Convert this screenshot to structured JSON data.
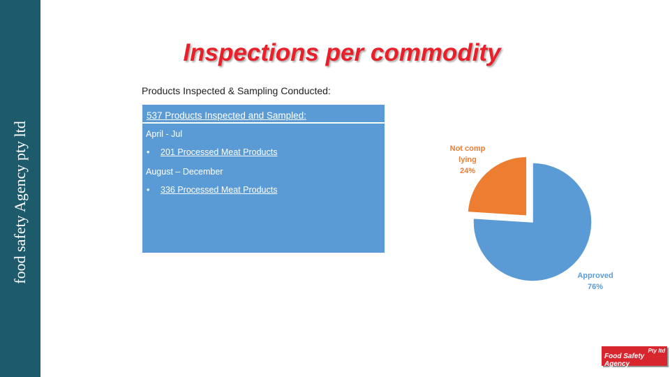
{
  "sidebar": {
    "text": "food safety Agency pty ltd"
  },
  "title": "Inspections per commodity",
  "subtitle": "Products Inspected & Sampling Conducted:",
  "box": {
    "heading": "537 Products Inspected and Sampled:",
    "sections": [
      {
        "period": "April - Jul",
        "items": [
          "201 Processed Meat Products"
        ]
      },
      {
        "period": "August – December",
        "items": [
          "336 Processed Meat Products"
        ]
      }
    ]
  },
  "logo": {
    "text": "Food Safety Agency",
    "suffix": "Pty ltd"
  },
  "chart_data": {
    "type": "pie",
    "categories": [
      "Not complying",
      "Approved"
    ],
    "values": [
      24,
      76
    ],
    "value_labels": [
      "24%",
      "76%"
    ],
    "colors": [
      "#ed7d31",
      "#5b9bd5"
    ]
  }
}
